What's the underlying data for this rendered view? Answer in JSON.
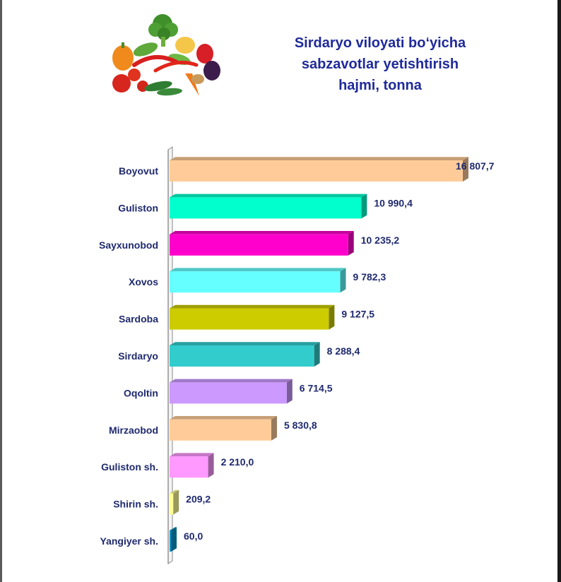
{
  "chart_data": {
    "type": "bar",
    "orientation": "horizontal",
    "title": "Sirdaryo viloyati bo‘yicha sabzavotlar yetishtirish hajmi, tonna",
    "title_lines": [
      "Sirdaryo viloyati bo‘yicha",
      "sabzavotlar yetishtirish",
      "hajmi, tonna"
    ],
    "categories": [
      "Boyovut",
      "Guliston",
      "Sayxunobod",
      "Xovos",
      "Sardoba",
      "Sirdaryo",
      "Oqoltin",
      "Mirzaobod",
      "Guliston sh.",
      "Shirin sh.",
      "Yangiyer sh."
    ],
    "values": [
      16807.7,
      10990.4,
      10235.2,
      9782.3,
      9127.5,
      8288.4,
      6714.5,
      5830.8,
      2210.0,
      209.2,
      60.0
    ],
    "value_labels": [
      "16 807,7",
      "10 990,4",
      "10 235,2",
      "9 782,3",
      "9 127,5",
      "8 288,4",
      "6 714,5",
      "5 830,8",
      "2 210,0",
      "209,2",
      "60,0"
    ],
    "bar_colors": [
      "#ffcc99",
      "#00ffcc",
      "#ff00cc",
      "#66ffff",
      "#cccc00",
      "#33cccc",
      "#cc99ff",
      "#ffcc99",
      "#ff99ff",
      "#ffff99",
      "#0099cc"
    ],
    "xlim": [
      0,
      17000
    ],
    "grid": false,
    "legend": "none",
    "style": "3d"
  },
  "decoration": {
    "image": "vegetables-illustration"
  }
}
